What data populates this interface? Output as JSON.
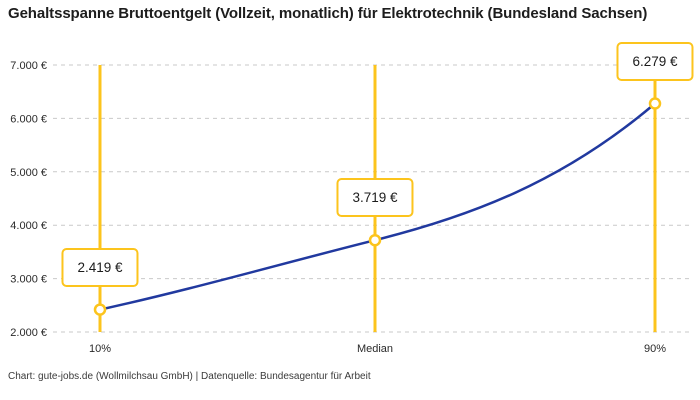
{
  "header": {
    "title": "Gehaltsspanne Bruttoentgelt (Vollzeit, monatlich) für Elektrotechnik (Bundesland Sachsen)"
  },
  "footer": {
    "attribution": "Chart: gute-jobs.de (Wollmilchsau GmbH) | Datenquelle: Bundesagentur für Arbeit"
  },
  "chart_data": {
    "type": "line",
    "title": "Gehaltsspanne Bruttoentgelt (Vollzeit, monatlich) für Elektrotechnik (Bundesland Sachsen)",
    "categories": [
      "10%",
      "Median",
      "90%"
    ],
    "values": [
      2419,
      3719,
      6279
    ],
    "point_labels": [
      "2.419 €",
      "3.719 €",
      "6.279 €"
    ],
    "ylim": [
      2000,
      7000
    ],
    "ytick_interval": 1000,
    "ytick_labels": [
      "2.000 €",
      "3.000 €",
      "4.000 €",
      "5.000 €",
      "6.000 €",
      "7.000 €"
    ],
    "xlabel": "",
    "ylabel": "",
    "grid": "horizontal-dashed",
    "legend": "none",
    "colors": {
      "series_line": "#21399f",
      "marker_line": "#fcc41d",
      "grid": "#c9c9c9",
      "text": "#2a2a2a"
    }
  }
}
